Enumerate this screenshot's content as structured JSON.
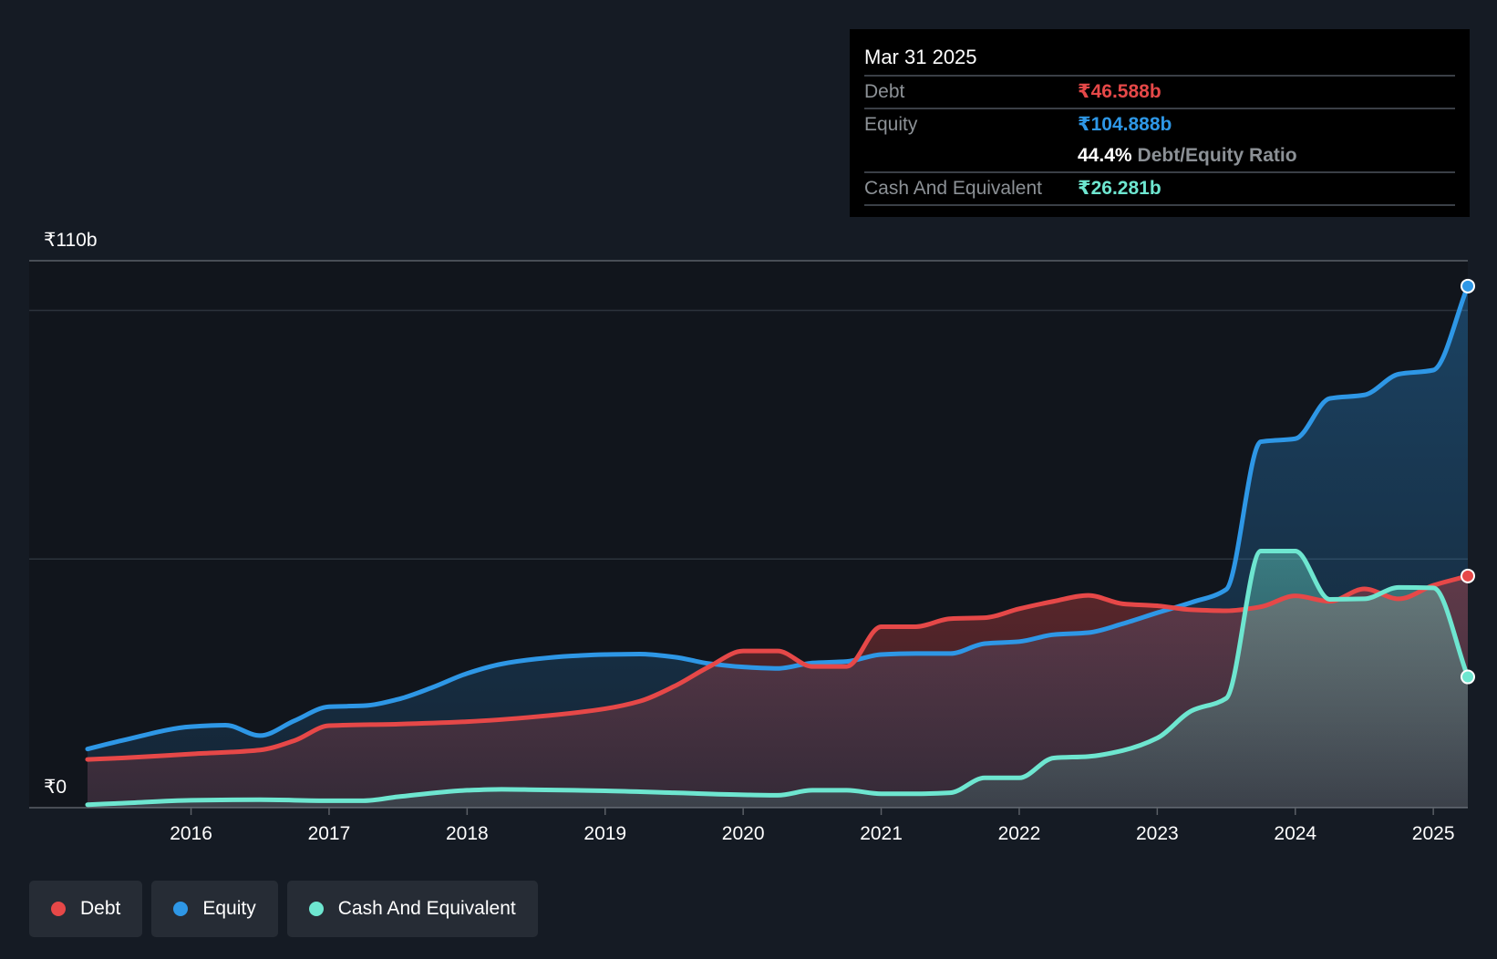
{
  "chart_data": {
    "type": "area",
    "title": "",
    "xlabel": "",
    "ylabel": "",
    "y_axis_labels": [
      "₹110b",
      "₹0"
    ],
    "ylim": [
      0,
      110
    ],
    "xlim": [
      2015.25,
      2025.25
    ],
    "x_ticks": [
      2016,
      2017,
      2018,
      2019,
      2020,
      2021,
      2022,
      2023,
      2024,
      2025
    ],
    "x_tick_labels": [
      "2016",
      "2017",
      "2018",
      "2019",
      "2020",
      "2021",
      "2022",
      "2023",
      "2024",
      "2025"
    ],
    "series": [
      {
        "name": "Debt",
        "color": "#e64848",
        "x": [
          2015.25,
          2015.5,
          2016.0,
          2016.5,
          2016.75,
          2017.0,
          2017.5,
          2018.0,
          2018.5,
          2019.0,
          2019.25,
          2019.5,
          2019.75,
          2020.0,
          2020.25,
          2020.5,
          2020.75,
          2021.0,
          2021.25,
          2021.5,
          2021.75,
          2022.0,
          2022.25,
          2022.5,
          2022.75,
          2023.0,
          2023.25,
          2023.5,
          2023.75,
          2024.0,
          2024.25,
          2024.5,
          2024.75,
          2025.0,
          2025.25
        ],
        "values": [
          9.7,
          10.0,
          10.8,
          11.6,
          13.5,
          16.5,
          16.8,
          17.3,
          18.3,
          19.9,
          21.4,
          24.4,
          28.3,
          31.5,
          31.5,
          28.4,
          28.4,
          36.4,
          36.4,
          38.0,
          38.2,
          40.0,
          41.5,
          42.7,
          41.0,
          40.6,
          39.8,
          39.6,
          40.4,
          42.6,
          41.5,
          44.0,
          42.0,
          44.7,
          46.6
        ]
      },
      {
        "name": "Equity",
        "color": "#2e97e6",
        "x": [
          2015.25,
          2015.5,
          2016.0,
          2016.25,
          2016.5,
          2016.75,
          2017.0,
          2017.25,
          2017.5,
          2017.75,
          2018.0,
          2018.25,
          2018.5,
          2018.75,
          2019.0,
          2019.25,
          2019.5,
          2019.75,
          2020.0,
          2020.25,
          2020.5,
          2020.75,
          2021.0,
          2021.25,
          2021.5,
          2021.75,
          2022.0,
          2022.25,
          2022.5,
          2022.75,
          2023.0,
          2023.25,
          2023.5,
          2023.75,
          2024.0,
          2024.25,
          2024.5,
          2024.75,
          2025.0,
          2025.25
        ],
        "values": [
          11.8,
          13.5,
          16.3,
          16.6,
          14.5,
          17.5,
          20.3,
          20.5,
          21.8,
          24.2,
          27.0,
          28.9,
          29.9,
          30.5,
          30.8,
          30.9,
          30.3,
          29.0,
          28.3,
          28.0,
          29.1,
          29.4,
          30.8,
          31.0,
          31.0,
          33.0,
          33.4,
          34.8,
          35.2,
          37.0,
          39.2,
          41.3,
          43.9,
          73.6,
          74.2,
          82.3,
          83.0,
          87.2,
          88.0,
          104.9
        ]
      },
      {
        "name": "Cash And Equivalent",
        "color": "#6ee6d0",
        "x": [
          2015.25,
          2015.5,
          2016.0,
          2016.5,
          2017.0,
          2017.25,
          2017.5,
          2018.0,
          2018.25,
          2018.5,
          2019.0,
          2019.5,
          2020.0,
          2020.25,
          2020.5,
          2020.75,
          2021.0,
          2021.25,
          2021.5,
          2021.75,
          2022.0,
          2022.25,
          2022.5,
          2022.75,
          2023.0,
          2023.25,
          2023.5,
          2023.75,
          2024.0,
          2024.25,
          2024.5,
          2024.75,
          2025.0,
          2025.25
        ],
        "values": [
          0.6,
          0.9,
          1.5,
          1.6,
          1.4,
          1.4,
          2.2,
          3.5,
          3.7,
          3.6,
          3.4,
          3.0,
          2.6,
          2.5,
          3.5,
          3.5,
          2.8,
          2.8,
          3.0,
          6.0,
          6.0,
          10.0,
          10.3,
          11.5,
          14.0,
          19.5,
          22.0,
          51.6,
          51.6,
          41.9,
          42.0,
          44.3,
          44.2,
          26.3
        ]
      }
    ],
    "tooltip": {
      "date": "Mar 31 2025",
      "debt_label": "Debt",
      "debt_value": "₹46.588b",
      "equity_label": "Equity",
      "equity_value": "₹104.888b",
      "ratio_value": "44.4%",
      "ratio_label": "Debt/Equity Ratio",
      "cash_label": "Cash And Equivalent",
      "cash_value": "₹26.281b"
    },
    "legend": [
      {
        "label": "Debt",
        "color": "#e64848"
      },
      {
        "label": "Equity",
        "color": "#2e97e6"
      },
      {
        "label": "Cash And Equivalent",
        "color": "#6ee6d0"
      }
    ]
  }
}
